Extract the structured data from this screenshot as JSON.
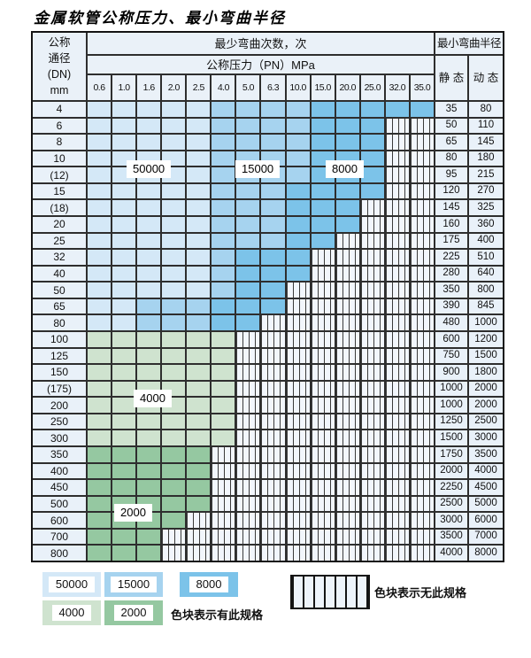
{
  "title": "金属软管公称压力、最小弯曲半径",
  "header": {
    "dn_lines": [
      "公称",
      "通径",
      "(DN)",
      "mm"
    ],
    "bend_times": "最少弯曲次数，次",
    "pressure": "公称压力（PN）MPa",
    "pressure_values": [
      "0.6",
      "1.0",
      "1.6",
      "2.0",
      "2.5",
      "4.0",
      "5.0",
      "6.3",
      "10.0",
      "15.0",
      "20.0",
      "25.0",
      "32.0",
      "35.0"
    ],
    "radius": "最小弯曲半径",
    "static_label": "静 态",
    "dynamic_label": "动 态"
  },
  "colors": {
    "A": "#d4e8f7",
    "B": "#a6d3ef",
    "C": "#7cc3e9",
    "G": "#cfe3cf",
    "H": "#95c8a1"
  },
  "color_meaning": {
    "A": "50000",
    "B": "15000",
    "C": "8000",
    "G": "4000",
    "H": "2000",
    "X": "no-spec-hatch"
  },
  "rows": [
    {
      "dn": "4",
      "cells": "AAAAABBBBCCCCC",
      "static": "35",
      "dynamic": "80"
    },
    {
      "dn": "6",
      "cells": "AAAAABBBBCCCXX",
      "static": "50",
      "dynamic": "110"
    },
    {
      "dn": "8",
      "cells": "AAAAABBBBCCCXX",
      "static": "65",
      "dynamic": "145"
    },
    {
      "dn": "10",
      "cells": "AAAAABBBBCCCXX",
      "static": "80",
      "dynamic": "180"
    },
    {
      "dn": "(12)",
      "cells": "AAAAABBBBCCCXX",
      "static": "95",
      "dynamic": "215"
    },
    {
      "dn": "15",
      "cells": "AAAAABBBCCCCXX",
      "static": "120",
      "dynamic": "270"
    },
    {
      "dn": "(18)",
      "cells": "AAAAABBBCCCXXX",
      "static": "145",
      "dynamic": "325"
    },
    {
      "dn": "20",
      "cells": "AAAAABBBCCCXXX",
      "static": "160",
      "dynamic": "360"
    },
    {
      "dn": "25",
      "cells": "AAAAABBBCCXXXX",
      "static": "175",
      "dynamic": "400"
    },
    {
      "dn": "32",
      "cells": "AAAAABCCCXXXXX",
      "static": "225",
      "dynamic": "510"
    },
    {
      "dn": "40",
      "cells": "AAAAABCCCXXXXX",
      "static": "280",
      "dynamic": "640"
    },
    {
      "dn": "50",
      "cells": "AAAAABCCXXXXXX",
      "static": "350",
      "dynamic": "800"
    },
    {
      "dn": "65",
      "cells": "AABBBCCCXXXXXX",
      "static": "390",
      "dynamic": "845"
    },
    {
      "dn": "80",
      "cells": "AABBBCCXXXXXXX",
      "static": "480",
      "dynamic": "1000"
    },
    {
      "dn": "100",
      "cells": "GGGGGGXXXXXXXX",
      "static": "600",
      "dynamic": "1200"
    },
    {
      "dn": "125",
      "cells": "GGGGGGXXXXXXXX",
      "static": "750",
      "dynamic": "1500"
    },
    {
      "dn": "150",
      "cells": "GGGGGGXXXXXXXX",
      "static": "900",
      "dynamic": "1800"
    },
    {
      "dn": "(175)",
      "cells": "GGGGGGXXXXXXXX",
      "static": "1000",
      "dynamic": "2000"
    },
    {
      "dn": "200",
      "cells": "GGGGGGXXXXXXXX",
      "static": "1000",
      "dynamic": "2000"
    },
    {
      "dn": "250",
      "cells": "GGGGGGXXXXXXXX",
      "static": "1250",
      "dynamic": "2500"
    },
    {
      "dn": "300",
      "cells": "GGGGGGXXXXXXXX",
      "static": "1500",
      "dynamic": "3000"
    },
    {
      "dn": "350",
      "cells": "HHHHHXXXXXXXXX",
      "static": "1750",
      "dynamic": "3500"
    },
    {
      "dn": "400",
      "cells": "HHHHHXXXXXXXXX",
      "static": "2000",
      "dynamic": "4000"
    },
    {
      "dn": "450",
      "cells": "HHHHHXXXXXXXXX",
      "static": "2250",
      "dynamic": "4500"
    },
    {
      "dn": "500",
      "cells": "HHHHHXXXXXXXXX",
      "static": "2500",
      "dynamic": "5000"
    },
    {
      "dn": "600",
      "cells": "HHHHXXXXXXXXXX",
      "static": "3000",
      "dynamic": "6000"
    },
    {
      "dn": "700",
      "cells": "HHHXXXXXXXXXXX",
      "static": "3500",
      "dynamic": "7000"
    },
    {
      "dn": "800",
      "cells": "HHHXXXXXXXXXXX",
      "static": "4000",
      "dynamic": "8000"
    }
  ],
  "overlays": [
    "50000",
    "15000",
    "8000",
    "4000",
    "2000"
  ],
  "legend": {
    "items": [
      {
        "label": "50000",
        "color": "#d4e8f7"
      },
      {
        "label": "15000",
        "color": "#a6d3ef"
      },
      {
        "label": "8000",
        "color": "#7cc3e9"
      },
      {
        "label": "4000",
        "color": "#cfe3cf"
      },
      {
        "label": "2000",
        "color": "#95c8a1"
      }
    ],
    "has_spec_text": "色块表示有此规格",
    "no_spec_text": "色块表示无此规格"
  }
}
